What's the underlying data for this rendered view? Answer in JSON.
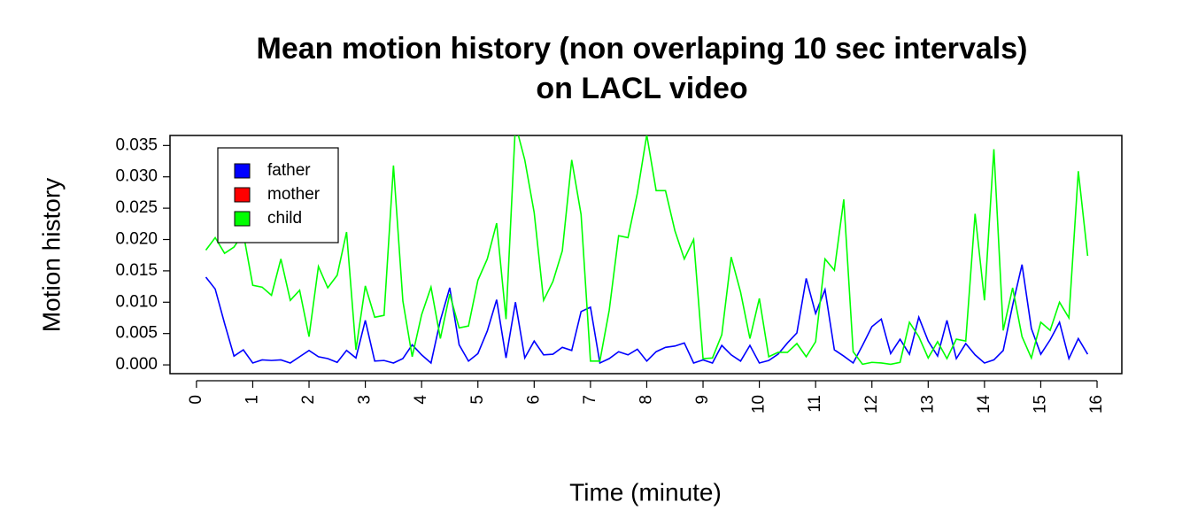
{
  "chart_data": {
    "type": "line",
    "title": [
      "Mean motion history (non overlaping 10 sec intervals)",
      "on LACL video"
    ],
    "x_label": "Time (minute)",
    "y_label": "Motion history",
    "x": [
      0.167,
      0.333,
      0.5,
      0.667,
      0.833,
      1,
      1.167,
      1.333,
      1.5,
      1.667,
      1.833,
      2,
      2.167,
      2.333,
      2.5,
      2.667,
      2.833,
      3,
      3.167,
      3.333,
      3.5,
      3.667,
      3.833,
      4,
      4.167,
      4.333,
      4.5,
      4.667,
      4.833,
      5,
      5.167,
      5.333,
      5.5,
      5.667,
      5.833,
      6,
      6.167,
      6.333,
      6.5,
      6.667,
      6.833,
      7,
      7.167,
      7.333,
      7.5,
      7.667,
      7.833,
      8,
      8.167,
      8.333,
      8.5,
      8.667,
      8.833,
      9,
      9.167,
      9.333,
      9.5,
      9.667,
      9.833,
      10,
      10.167,
      10.333,
      10.5,
      10.667,
      10.833,
      11,
      11.167,
      11.333,
      11.5,
      11.667,
      11.833,
      12,
      12.167,
      12.333,
      12.5,
      12.667,
      12.833,
      13,
      13.167,
      13.333,
      13.5,
      13.667,
      13.833,
      14,
      14.167,
      14.333,
      14.5,
      14.667,
      14.833,
      15,
      15.167,
      15.333,
      15.5,
      15.667,
      15.833
    ],
    "series": [
      {
        "name": "father",
        "color": "#0000ff",
        "values": [
          0.014,
          0.0121,
          0.0066,
          0.0014,
          0.0024,
          0.0003,
          0.0008,
          0.0007,
          0.0008,
          0.0003,
          0.0013,
          0.0023,
          0.0013,
          0.001,
          0.0004,
          0.0023,
          0.0011,
          0.0071,
          0.0006,
          0.0007,
          0.0003,
          0.001,
          0.0032,
          0.0016,
          0.0003,
          0.0071,
          0.0123,
          0.0032,
          0.0006,
          0.0018,
          0.0054,
          0.0104,
          0.0011,
          0.01,
          0.0011,
          0.0038,
          0.0016,
          0.0017,
          0.0028,
          0.0023,
          0.0085,
          0.0092,
          0.0003,
          0.001,
          0.0021,
          0.0016,
          0.0025,
          0.0006,
          0.0021,
          0.0028,
          0.003,
          0.0035,
          0.0003,
          0.0008,
          0.0003,
          0.0031,
          0.0016,
          0.0006,
          0.0031,
          0.0003,
          0.0007,
          0.0017,
          0.0035,
          0.0051,
          0.0138,
          0.0082,
          0.012,
          0.0024,
          0.0014,
          0.0003,
          0.0031,
          0.0061,
          0.0073,
          0.0018,
          0.0041,
          0.0017,
          0.0076,
          0.0038,
          0.0014,
          0.0071,
          0.001,
          0.0034,
          0.0016,
          0.0003,
          0.0008,
          0.0023,
          0.0095,
          0.016,
          0.0058,
          0.0017,
          0.004,
          0.0068,
          0.001,
          0.0042,
          0.0017
        ]
      },
      {
        "name": "mother",
        "color": "#ff0000",
        "values": [
          null,
          null,
          null,
          null,
          null,
          null,
          null,
          null,
          null,
          null,
          null,
          null,
          null,
          null,
          null,
          null,
          null,
          null,
          null,
          null,
          null,
          null,
          null,
          null,
          null,
          null,
          null,
          null,
          null,
          null,
          null,
          null,
          null,
          null,
          null,
          null,
          null,
          null,
          null,
          null,
          null,
          null,
          null,
          null,
          null,
          null,
          null,
          null,
          null,
          null,
          null,
          null,
          null,
          null,
          null,
          null,
          null,
          null,
          null,
          null,
          null,
          null,
          null,
          null,
          null,
          null,
          null,
          null,
          null,
          null,
          null,
          null,
          null,
          null,
          null,
          null,
          null,
          null,
          null,
          null,
          null,
          null,
          null,
          null,
          null,
          null,
          null,
          null,
          null,
          null,
          null,
          null,
          null,
          null,
          null
        ]
      },
      {
        "name": "child",
        "color": "#00ff00",
        "values": [
          0.0183,
          0.0203,
          0.0178,
          0.0188,
          0.021,
          0.0127,
          0.0124,
          0.0111,
          0.0169,
          0.0103,
          0.0119,
          0.0045,
          0.0157,
          0.0123,
          0.0143,
          0.0212,
          0.0024,
          0.0126,
          0.0076,
          0.0079,
          0.0318,
          0.0102,
          0.0013,
          0.008,
          0.0124,
          0.0042,
          0.0113,
          0.0059,
          0.0062,
          0.0135,
          0.0169,
          0.0226,
          0.0073,
          0.0384,
          0.0327,
          0.0243,
          0.0103,
          0.0133,
          0.0182,
          0.0327,
          0.024,
          0.0006,
          0.0006,
          0.0087,
          0.0206,
          0.0203,
          0.0274,
          0.0367,
          0.0278,
          0.0278,
          0.0214,
          0.0169,
          0.02,
          0.001,
          0.0011,
          0.0048,
          0.0172,
          0.0116,
          0.0042,
          0.0106,
          0.0013,
          0.002,
          0.002,
          0.0034,
          0.0013,
          0.0037,
          0.0169,
          0.0151,
          0.0264,
          0.0021,
          0.0001,
          0.0004,
          0.0003,
          0.0001,
          0.0004,
          0.0068,
          0.0045,
          0.0011,
          0.0037,
          0.001,
          0.0041,
          0.0038,
          0.0241,
          0.0103,
          0.0344,
          0.0055,
          0.0123,
          0.0045,
          0.0011,
          0.0068,
          0.0055,
          0.01,
          0.0075,
          0.0309,
          0.0174
        ]
      }
    ],
    "xlim": [
      -0.47,
      16.44
    ],
    "ylim": [
      -0.0014,
      0.0366
    ],
    "xticks": [
      0,
      1,
      2,
      3,
      4,
      5,
      6,
      7,
      8,
      9,
      10,
      11,
      12,
      13,
      14,
      15,
      16
    ],
    "yticks": [
      {
        "value": 0,
        "label": "0.000"
      },
      0.005,
      {
        "value": 0.01,
        "label": "0.010"
      },
      0.015,
      {
        "value": 0.02,
        "label": "0.020"
      },
      0.025,
      {
        "value": 0.03,
        "label": "0.030"
      },
      0.035
    ],
    "legend": "top-left"
  }
}
